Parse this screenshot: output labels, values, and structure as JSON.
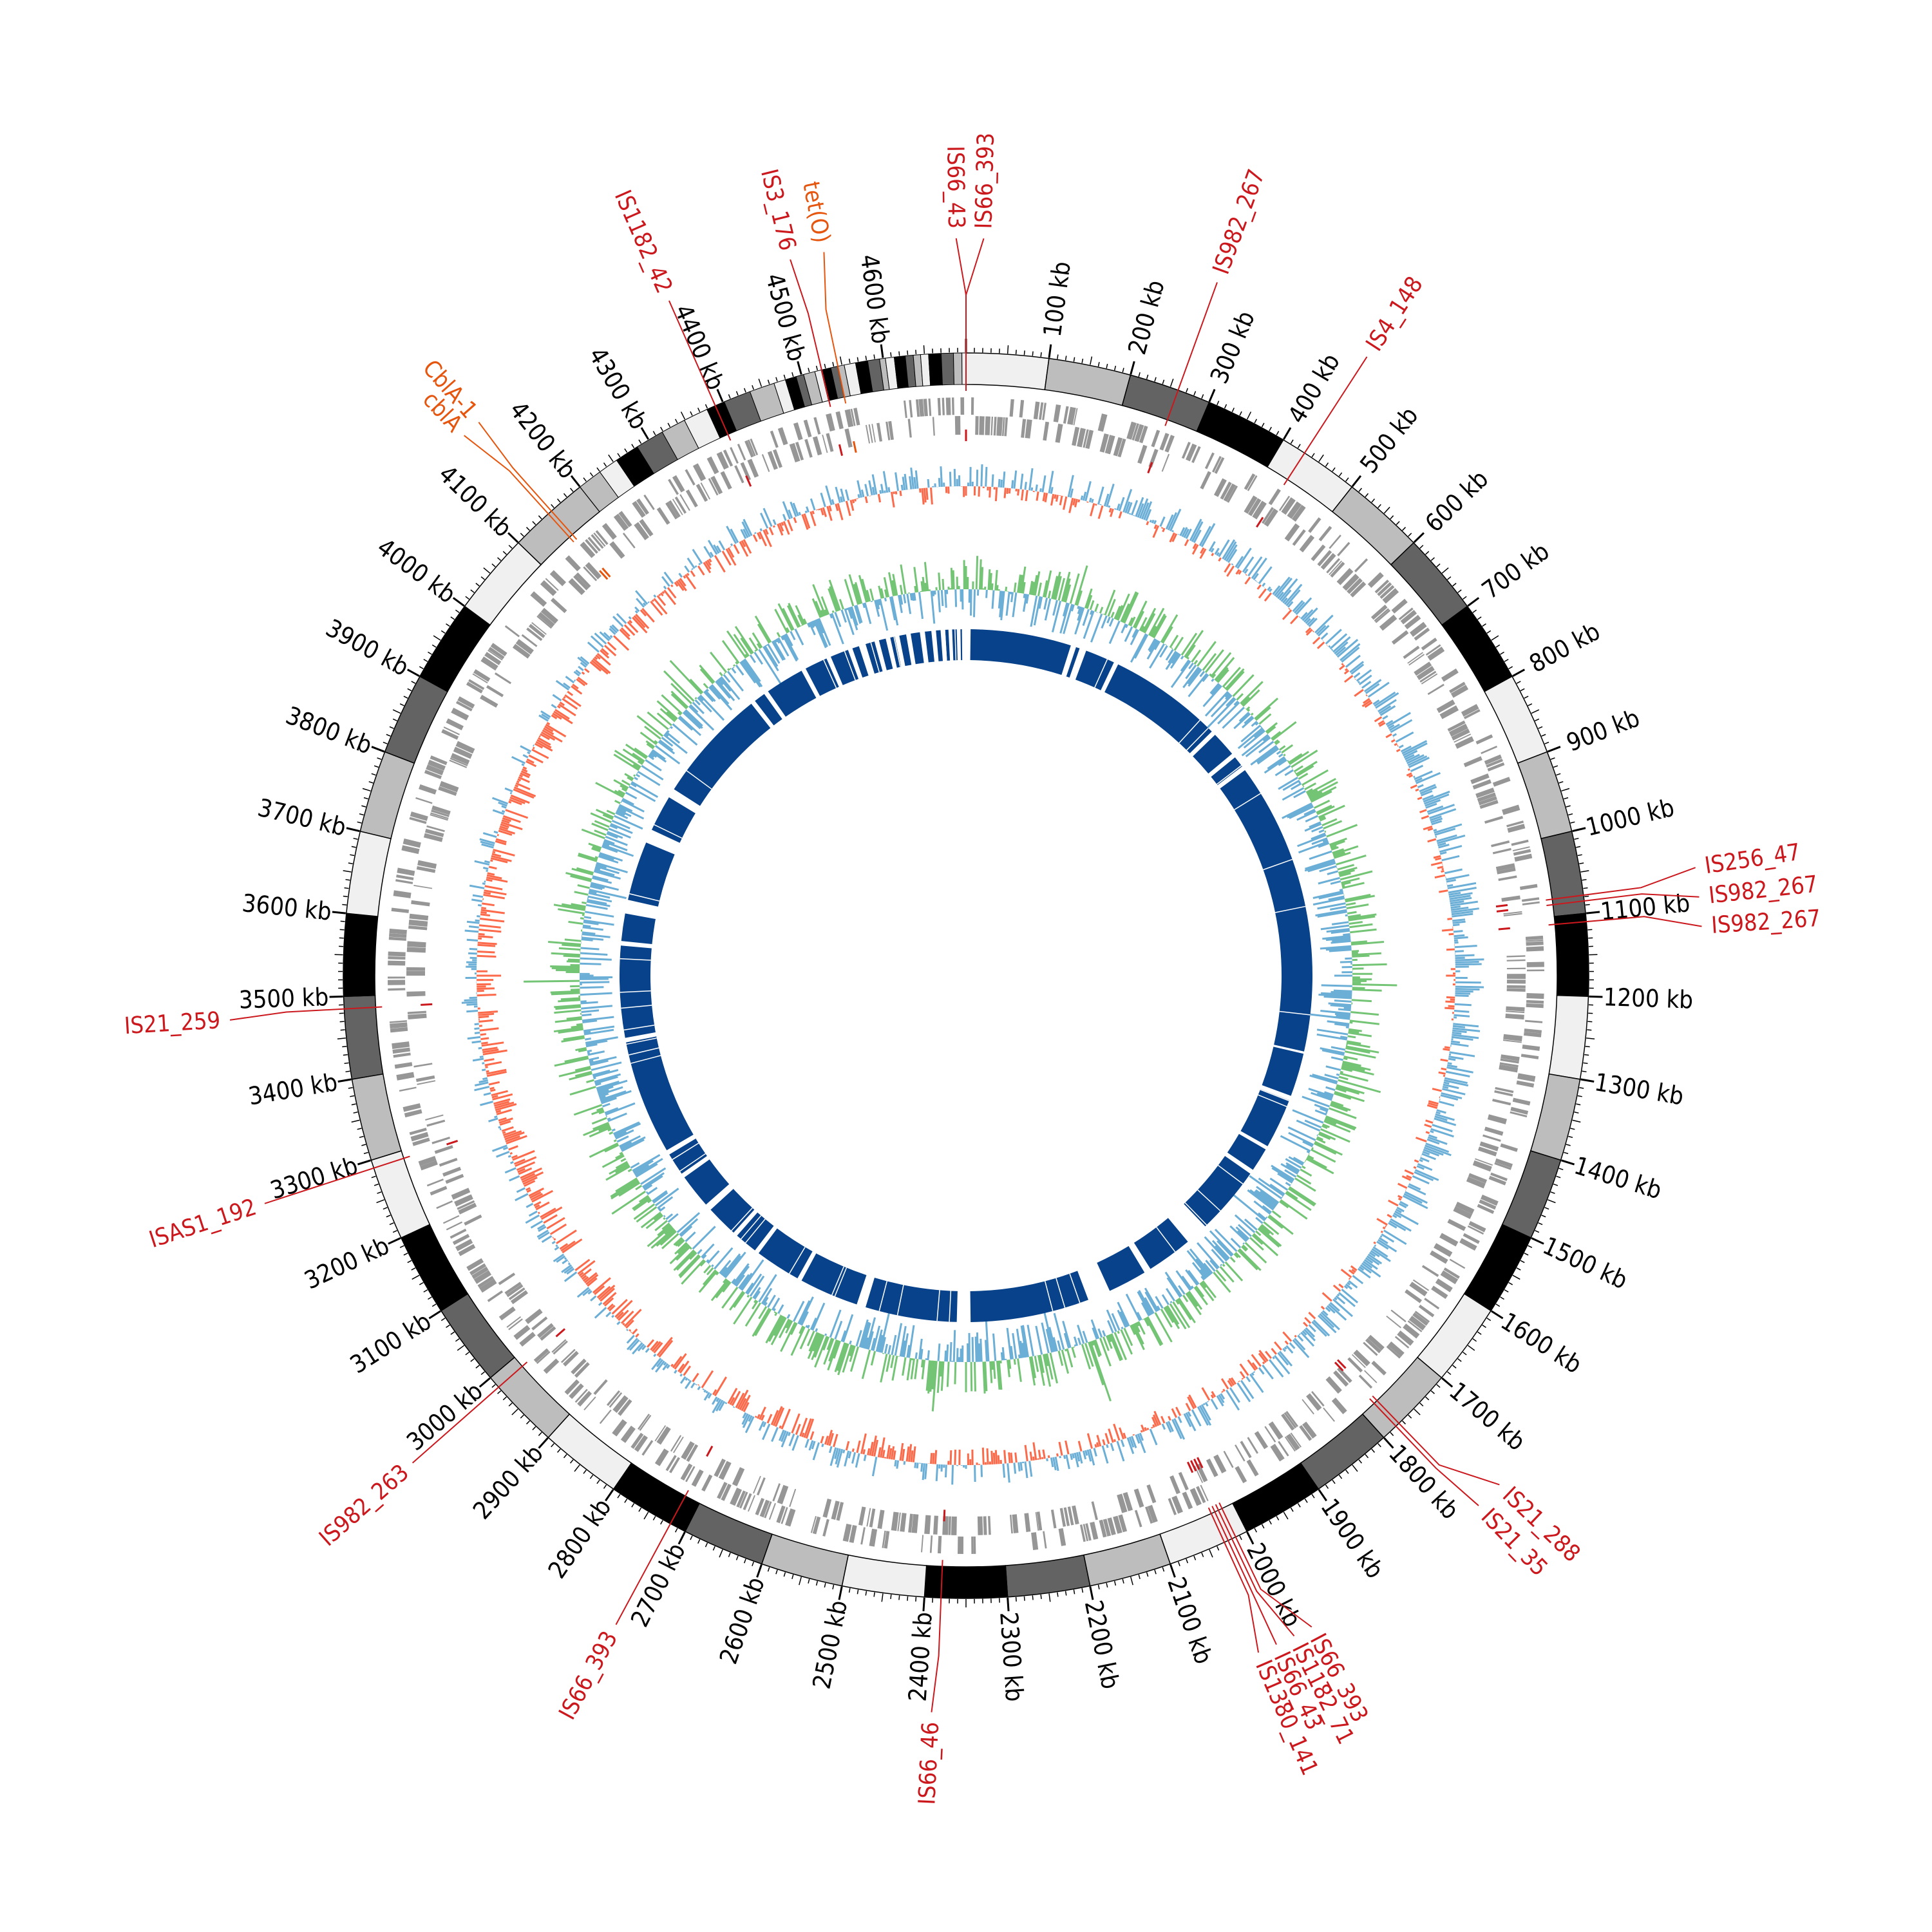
{
  "genome": {
    "length_kb": 4700
  },
  "colors": {
    "ideogram_shades": [
      "#f0f0f0",
      "#bdbdbd",
      "#636363",
      "#000000"
    ],
    "feature_track": "#969696",
    "gc_skew_positive": "#6baed6",
    "gc_skew_negative": "#fb6a4a",
    "gc_content": "#74c476",
    "synteny_blocks": "#08428a",
    "mobile_element_label": "#cb181d",
    "resistance_gene_label": "#e6550d",
    "tick_label": "#000000"
  },
  "ticks": {
    "unit": "kb",
    "major_interval_kb": 100,
    "labels": [
      "100 kb",
      "200 kb",
      "300 kb",
      "400 kb",
      "500 kb",
      "600 kb",
      "700 kb",
      "800 kb",
      "900 kb",
      "1000 kb",
      "1100 kb",
      "1200 kb",
      "1300 kb",
      "1400 kb",
      "1500 kb",
      "1600 kb",
      "1700 kb",
      "1800 kb",
      "1900 kb",
      "2000 kb",
      "2100 kb",
      "2200 kb",
      "2300 kb",
      "2400 kb",
      "2500 kb",
      "2600 kb",
      "2700 kb",
      "2800 kb",
      "2900 kb",
      "3000 kb",
      "3100 kb",
      "3200 kb",
      "3300 kb",
      "3400 kb",
      "3500 kb",
      "3600 kb",
      "3700 kb",
      "3800 kb",
      "3900 kb",
      "4000 kb",
      "4100 kb",
      "4200 kb",
      "4300 kb",
      "4400 kb",
      "4500 kb",
      "4600 kb"
    ]
  },
  "annotations": [
    {
      "label": "IS66_43",
      "position_kb": 0,
      "type": "mobile"
    },
    {
      "label": "IS66_393",
      "position_kb": 0,
      "type": "mobile"
    },
    {
      "label": "IS982_267",
      "position_kb": 260,
      "type": "mobile"
    },
    {
      "label": "IS4_148",
      "position_kb": 430,
      "type": "mobile"
    },
    {
      "label": "IS256_47",
      "position_kb": 1078,
      "type": "mobile"
    },
    {
      "label": "IS982_267",
      "position_kb": 1085,
      "type": "mobile"
    },
    {
      "label": "IS982_267",
      "position_kb": 1110,
      "type": "mobile"
    },
    {
      "label": "IS21_288",
      "position_kb": 1775,
      "type": "mobile"
    },
    {
      "label": "IS21_35",
      "position_kb": 1780,
      "type": "mobile"
    },
    {
      "label": "IS66_393",
      "position_kb": 2015,
      "type": "mobile"
    },
    {
      "label": "IS1182_71",
      "position_kb": 2020,
      "type": "mobile"
    },
    {
      "label": "IS66_43",
      "position_kb": 2025,
      "type": "mobile"
    },
    {
      "label": "IS1380_141",
      "position_kb": 2030,
      "type": "mobile"
    },
    {
      "label": "IS66_46",
      "position_kb": 2380,
      "type": "mobile"
    },
    {
      "label": "IS66_393",
      "position_kb": 2720,
      "type": "mobile"
    },
    {
      "label": "IS982_263",
      "position_kb": 2985,
      "type": "mobile"
    },
    {
      "label": "ISAS1_192",
      "position_kb": 3290,
      "type": "mobile"
    },
    {
      "label": "IS21_259",
      "position_kb": 3485,
      "type": "mobile"
    },
    {
      "label": "cblA",
      "position_kb": 4150,
      "type": "resistance"
    },
    {
      "label": "CblA-1",
      "position_kb": 4155,
      "type": "resistance"
    },
    {
      "label": "IS1182_42",
      "position_kb": 4390,
      "type": "mobile"
    },
    {
      "label": "IS3_176",
      "position_kb": 4525,
      "type": "mobile"
    },
    {
      "label": "tet(O)",
      "position_kb": 4545,
      "type": "resistance"
    }
  ]
}
